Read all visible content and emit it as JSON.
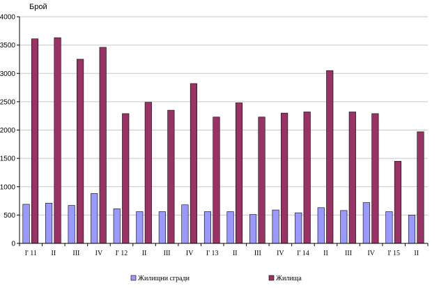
{
  "chart_data": {
    "type": "bar",
    "title": "",
    "xlabel": "",
    "ylabel": "Брой",
    "ylim": [
      0,
      4000
    ],
    "yticks": [
      0,
      500,
      1000,
      1500,
      2000,
      2500,
      3000,
      3500,
      4000
    ],
    "grid": true,
    "legend_position": "bottom",
    "categories": [
      "I' 11",
      "II",
      "III",
      "IV",
      "I' 12",
      "II",
      "III",
      "IV",
      "I' 13",
      "II",
      "III",
      "IV",
      "I' 14",
      "II",
      "III",
      "IV",
      "I' 15",
      "II"
    ],
    "series": [
      {
        "name": "Жилищни сгради",
        "color": "#9999ff",
        "values": [
          690,
          710,
          670,
          880,
          610,
          560,
          560,
          680,
          560,
          560,
          510,
          590,
          540,
          630,
          580,
          720,
          560,
          500
        ]
      },
      {
        "name": "Жилища",
        "color": "#993366",
        "values": [
          3610,
          3630,
          3250,
          3460,
          2290,
          2490,
          2350,
          2820,
          2230,
          2480,
          2230,
          2300,
          2320,
          3050,
          2320,
          2290,
          1450,
          1970
        ]
      }
    ]
  }
}
